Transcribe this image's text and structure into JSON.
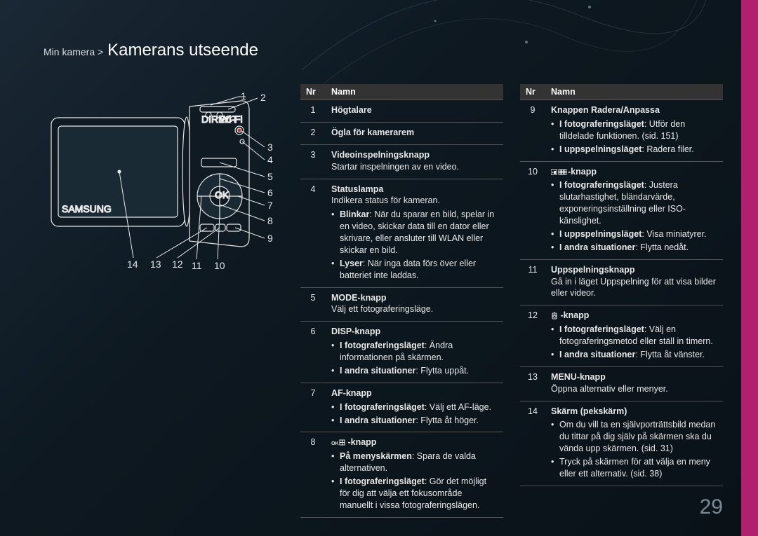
{
  "breadcrumb": {
    "parent": "Min kamera",
    "sep": ">",
    "title": "Kamerans utseende"
  },
  "pageNumber": "29",
  "accentColor": "#b0206e",
  "diagram": {
    "callouts_right": [
      "1",
      "2",
      "3",
      "4",
      "5",
      "6",
      "7",
      "8",
      "9"
    ],
    "callouts_bottom": [
      "14",
      "13",
      "12",
      "11",
      "10"
    ]
  },
  "leftTable": {
    "headers": {
      "nr": "Nr",
      "name": "Namn"
    },
    "rows": [
      {
        "nr": "1",
        "name": "Högtalare"
      },
      {
        "nr": "2",
        "name": "Ögla för kamerarem"
      },
      {
        "nr": "3",
        "name": "Videoinspelningsknapp",
        "desc": "Startar inspelningen av en video."
      },
      {
        "nr": "4",
        "name": "Statuslampa",
        "desc": "Indikera status för kameran.",
        "bullets": [
          {
            "b": "Blinkar",
            "t": ": När du sparar en bild, spelar in en video, skickar data till en dator eller skrivare, eller ansluter till WLAN eller skickar en bild."
          },
          {
            "b": "Lyser",
            "t": ": När inga data förs över eller batteriet inte laddas."
          }
        ]
      },
      {
        "nr": "5",
        "name": "MODE-knapp",
        "desc": "Välj ett fotograferingsläge."
      },
      {
        "nr": "6",
        "name": "DISP-knapp",
        "bullets": [
          {
            "b": "I fotograferingsläget",
            "t": ": Ändra informationen på skärmen."
          },
          {
            "b": "I andra situationer",
            "t": ": Flytta uppåt."
          }
        ]
      },
      {
        "nr": "7",
        "name": "AF-knapp",
        "bullets": [
          {
            "b": "I fotograferingsläget",
            "t": ": Välj ett AF-läge."
          },
          {
            "b": "I andra situationer",
            "t": ": Flytta åt höger."
          }
        ]
      },
      {
        "nr": "8",
        "iconName": "ok-grid-icon",
        "name": " -knapp",
        "bullets": [
          {
            "b": "På menyskärmen",
            "t": ": Spara de valda alternativen."
          },
          {
            "b": "I fotograferingsläget",
            "t": ": Gör det möjligt för dig att välja ett fokusområde manuellt i vissa fotograferingslägen."
          }
        ]
      }
    ]
  },
  "rightTable": {
    "headers": {
      "nr": "Nr",
      "name": "Namn"
    },
    "rows": [
      {
        "nr": "9",
        "name": "Knappen Radera/Anpassa",
        "bullets": [
          {
            "b": "I fotograferingsläget",
            "t": ": Utför den tilldelade funktionen. (sid. 151)"
          },
          {
            "b": "I uppspelningsläget",
            "t": ": Radera filer."
          }
        ]
      },
      {
        "nr": "10",
        "iconName": "thumb-grid-icon",
        "name": "-knapp",
        "bullets": [
          {
            "b": "I fotograferingsläget",
            "t": ": Justera slutarhastighet, bländarvärde, exponeringsinställning eller ISO-känslighet."
          },
          {
            "b": "I uppspelningsläget",
            "t": ": Visa miniatyrer."
          },
          {
            "b": "I andra situationer",
            "t": ": Flytta nedåt."
          }
        ]
      },
      {
        "nr": "11",
        "name": "Uppspelningsknapp",
        "desc": "Gå in i läget Uppspelning för att visa bilder eller videor."
      },
      {
        "nr": "12",
        "iconName": "timer-icon",
        "name": " -knapp",
        "bullets": [
          {
            "b": "I fotograferingsläget",
            "t": ": Välj en fotograferingsmetod eller ställ in timern."
          },
          {
            "b": "I andra situationer",
            "t": ": Flytta åt vänster."
          }
        ]
      },
      {
        "nr": "13",
        "name": "MENU-knapp",
        "desc": "Öppna alternativ eller menyer."
      },
      {
        "nr": "14",
        "name": "Skärm (pekskärm)",
        "bullets": [
          {
            "t": "Om du vill ta en självporträttsbild medan du tittar på dig själv på skärmen ska du vända upp skärmen. (sid. 31)"
          },
          {
            "t": "Tryck på skärmen för att välja en meny eller ett alternativ. (sid. 38)"
          }
        ]
      }
    ]
  }
}
